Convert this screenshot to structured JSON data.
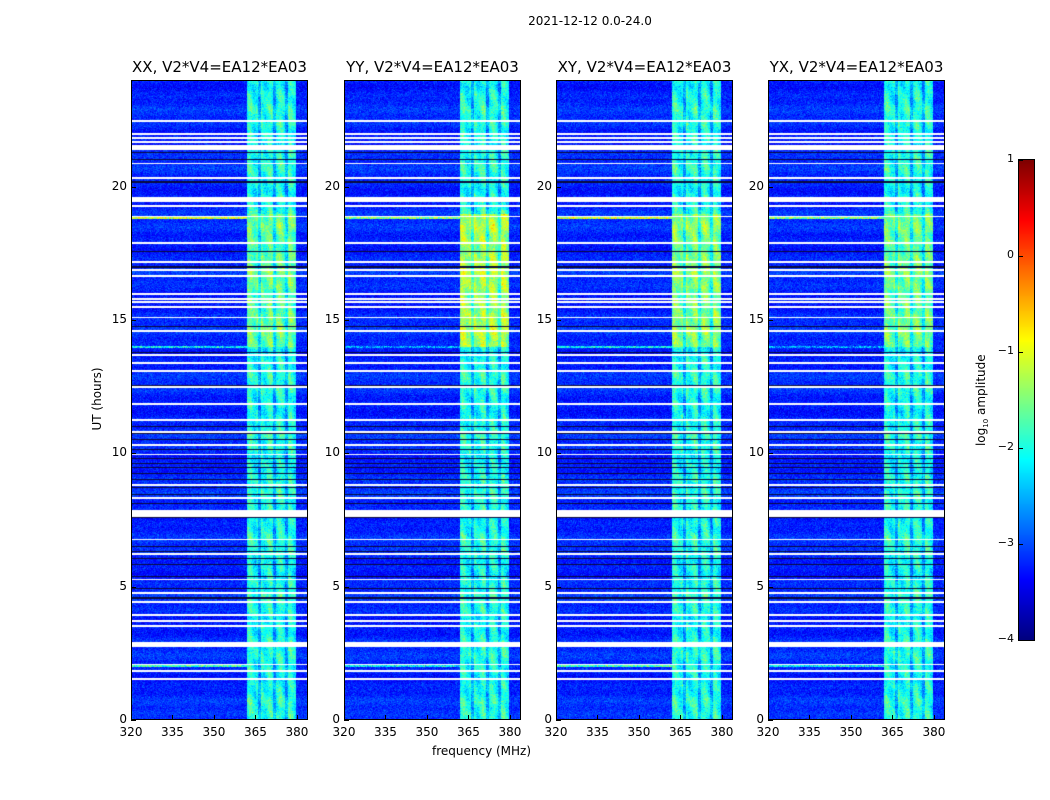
{
  "suptitle": "2021-12-12 0.0-24.0",
  "chart_data": {
    "type": "heatmap",
    "xlabel": "frequency (MHz)",
    "ylabel": "UT (hours)",
    "xlim": [
      320,
      384
    ],
    "ylim": [
      0,
      24
    ],
    "xticks": [
      320,
      335,
      350,
      365,
      380
    ],
    "yticks": [
      0,
      5,
      10,
      15,
      20
    ],
    "panels": [
      {
        "title": "XX, V2*V4=EA12*EA03",
        "band_boost": 0.0
      },
      {
        "title": "YY, V2*V4=EA12*EA03",
        "band_boost": 0.35
      },
      {
        "title": "XY, V2*V4=EA12*EA03",
        "band_boost": 0.15
      },
      {
        "title": "YX, V2*V4=EA12*EA03",
        "band_boost": 0.05
      }
    ],
    "background_log_amplitude": -3.2,
    "band_log_amplitude": -2.0,
    "band_segments_mhz": [
      [
        362,
        366
      ],
      [
        367,
        371.5
      ],
      [
        372.5,
        376
      ],
      [
        377,
        380
      ]
    ],
    "bright_period_ut": [
      14,
      19
    ],
    "flagged_rows_ut": [
      22.5,
      22.0,
      21.85,
      21.7,
      21.5,
      20.9,
      20.35,
      19.55,
      19.3,
      18.9,
      17.9,
      17.2,
      16.9,
      16.65,
      16.0,
      15.8,
      15.7,
      15.5,
      15.1,
      14.6,
      13.7,
      13.4,
      13.1,
      12.5,
      11.85,
      11.25,
      10.8,
      10.3,
      9.95,
      8.8,
      8.3,
      7.8,
      7.65,
      6.75,
      6.2,
      5.25,
      4.75,
      4.4,
      3.9,
      3.7,
      3.5,
      2.8,
      2.05,
      1.8,
      1.5
    ],
    "thick_flagged_rows_ut": [
      21.5,
      19.55,
      7.75,
      2.8
    ],
    "dark_rows_ut": [
      21.3,
      21.05,
      20.2,
      17.6,
      17.0,
      14.75,
      13.8,
      12.55,
      11.0,
      10.75,
      10.5,
      10.15,
      9.8,
      9.6,
      9.45,
      9.25,
      9.0,
      8.7,
      8.45,
      8.1,
      7.6,
      6.5,
      6.3,
      6.05,
      5.8,
      5.35,
      4.9,
      4.55
    ],
    "rfi_rows": [
      {
        "ut": 18.85,
        "mhz_range": [
          320,
          362
        ],
        "log_amplitude": -0.5
      },
      {
        "ut": 2.0,
        "mhz_range": [
          320,
          362
        ],
        "log_amplitude": -1.2
      },
      {
        "ut": 14.0,
        "mhz_range": [
          320,
          362
        ],
        "log_amplitude": -1.6
      }
    ],
    "colorbar": {
      "label_base": "log",
      "label_sub": "10",
      "label_rest": " amplitude",
      "range": [
        -4,
        1
      ],
      "ticks": [
        1,
        0,
        -1,
        -2,
        -3,
        -4
      ],
      "tick_labels": [
        "1",
        "0",
        "−1",
        "−2",
        "−3",
        "−4"
      ],
      "colormap": "jet"
    }
  }
}
